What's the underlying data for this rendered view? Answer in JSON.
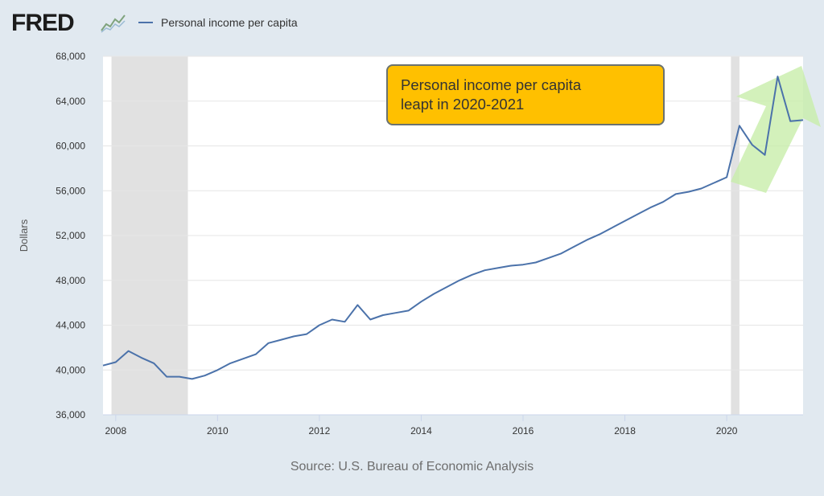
{
  "header": {
    "logo_text": "FRED",
    "logo_icon": "sparkline-chart-icon"
  },
  "annotation": {
    "line1": "Personal income per capita",
    "line2": "leapt in 2020-2021",
    "background_color": "#ffc000",
    "arrow_color": "#c8eeaa"
  },
  "source": "Source: U.S. Bureau of Economic Analysis",
  "chart_data": {
    "type": "line",
    "ylabel": "Dollars",
    "xlim": [
      2007.75,
      2021.5
    ],
    "ylim": [
      36000,
      68000
    ],
    "y_ticks": [
      36000,
      40000,
      44000,
      48000,
      52000,
      56000,
      60000,
      64000,
      68000
    ],
    "y_tick_labels": [
      "36,000",
      "40,000",
      "44,000",
      "48,000",
      "52,000",
      "56,000",
      "60,000",
      "64,000",
      "68,000"
    ],
    "x_ticks": [
      2008,
      2010,
      2012,
      2014,
      2016,
      2018,
      2020
    ],
    "x_tick_labels": [
      "2008",
      "2010",
      "2012",
      "2014",
      "2016",
      "2018",
      "2020"
    ],
    "grid": "horizontal",
    "legend_position": "top-left",
    "recessions": [
      [
        2007.917,
        2009.417
      ],
      [
        2020.083,
        2020.25
      ]
    ],
    "series": [
      {
        "name": "Personal income per capita",
        "color": "#4b72aa",
        "x": [
          2007.75,
          2008.0,
          2008.25,
          2008.5,
          2008.75,
          2009.0,
          2009.25,
          2009.5,
          2009.75,
          2010.0,
          2010.25,
          2010.5,
          2010.75,
          2011.0,
          2011.25,
          2011.5,
          2011.75,
          2012.0,
          2012.25,
          2012.5,
          2012.75,
          2013.0,
          2013.25,
          2013.5,
          2013.75,
          2014.0,
          2014.25,
          2014.5,
          2014.75,
          2015.0,
          2015.25,
          2015.5,
          2015.75,
          2016.0,
          2016.25,
          2016.5,
          2016.75,
          2017.0,
          2017.25,
          2017.5,
          2017.75,
          2018.0,
          2018.25,
          2018.5,
          2018.75,
          2019.0,
          2019.25,
          2019.5,
          2019.75,
          2020.0,
          2020.25,
          2020.5,
          2020.75,
          2021.0,
          2021.25,
          2021.5
        ],
        "values": [
          40400,
          40700,
          41700,
          41100,
          40600,
          39400,
          39400,
          39200,
          39500,
          40000,
          40600,
          41000,
          41400,
          42400,
          42700,
          43000,
          43200,
          44000,
          44500,
          44300,
          45800,
          44500,
          44900,
          45100,
          45300,
          46100,
          46800,
          47400,
          48000,
          48500,
          48900,
          49100,
          49300,
          49400,
          49600,
          50000,
          50400,
          51000,
          51600,
          52100,
          52700,
          53300,
          53900,
          54500,
          55000,
          55700,
          55900,
          56200,
          56700,
          57200,
          61800,
          60100,
          59200,
          66200,
          62200,
          62300
        ]
      }
    ]
  }
}
